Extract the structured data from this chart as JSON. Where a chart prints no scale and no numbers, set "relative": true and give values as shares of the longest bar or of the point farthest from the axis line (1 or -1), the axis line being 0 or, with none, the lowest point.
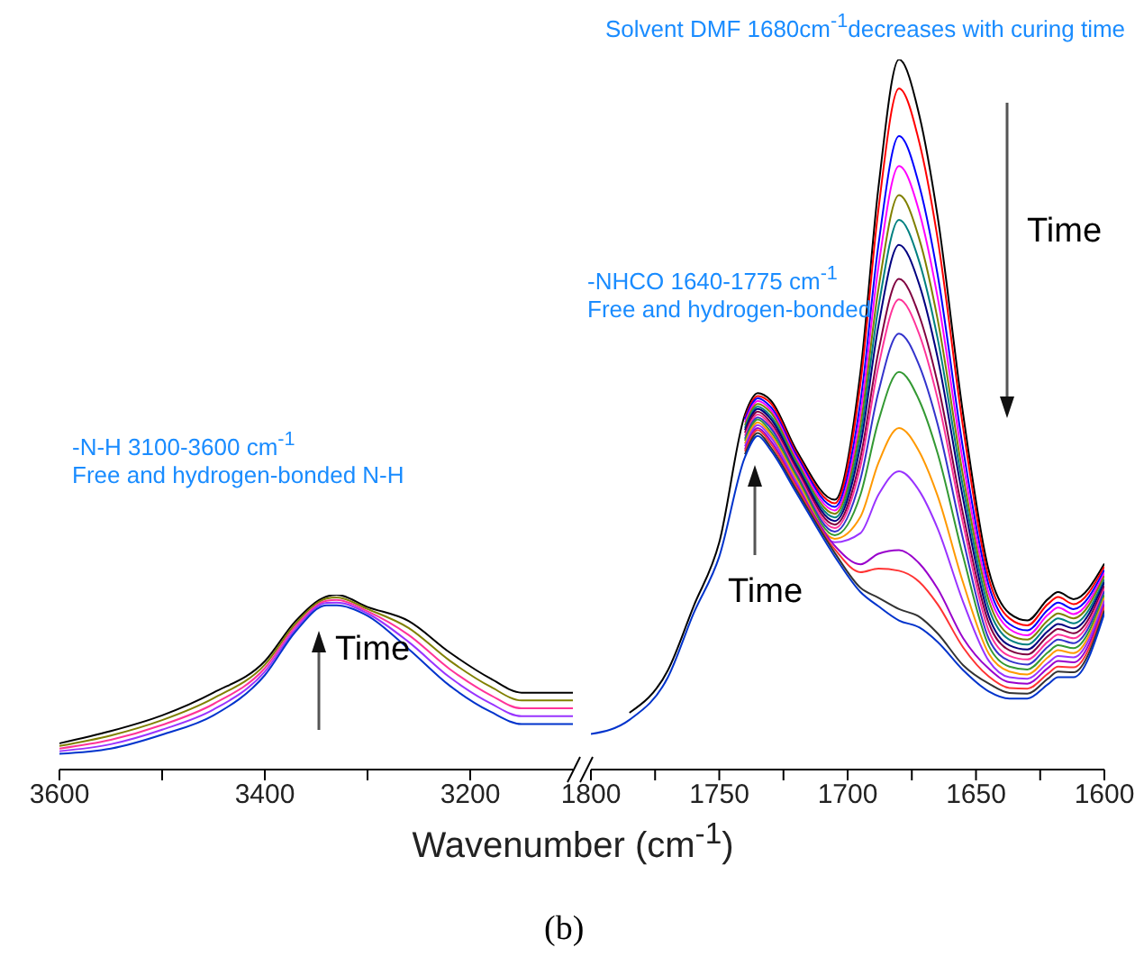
{
  "chart_data": [
    {
      "type": "line",
      "relative": true,
      "xlabel": "Wavenumber (cm$^{-1}$)",
      "xlim": [
        3600,
        3100
      ],
      "xticks": [
        3600,
        {
          "value": 3500,
          "label": null
        },
        3400,
        {
          "value": 3300,
          "label": null
        },
        3200
      ],
      "annotations": [
        "-N-H 3100-3600 cm$^{-1}$",
        "Free and hydrogen-bonded N-H",
        "Time"
      ],
      "x": [
        3600,
        3550,
        3500,
        3450,
        3400,
        3370,
        3340,
        3330,
        3300,
        3260,
        3220,
        3180,
        3150,
        3100
      ],
      "series": [
        {
          "color": "#000000",
          "values": [
            0.15,
            0.22,
            0.31,
            0.44,
            0.62,
            0.85,
            0.99,
            1.0,
            0.93,
            0.85,
            0.67,
            0.52,
            0.44,
            0.44
          ]
        },
        {
          "color": "#ff0000",
          "values": [
            null,
            null,
            null,
            null,
            null,
            null,
            null,
            null,
            null,
            null,
            null,
            null,
            null,
            null
          ]
        },
        {
          "color": "#0000ff",
          "values": [
            null,
            null,
            null,
            null,
            null,
            null,
            null,
            null,
            null,
            null,
            null,
            null,
            null,
            null
          ]
        },
        {
          "color": "#ff00ff",
          "values": [
            null,
            null,
            null,
            null,
            null,
            null,
            null,
            null,
            null,
            null,
            null,
            null,
            null,
            null
          ]
        },
        {
          "color": "#808000",
          "values": [
            0.135,
            0.195,
            0.283,
            0.408,
            0.6,
            0.835,
            0.978,
            0.985,
            0.918,
            0.81,
            0.623,
            0.473,
            0.395,
            0.395
          ]
        },
        {
          "color": "#008080",
          "values": [
            null,
            null,
            null,
            null,
            null,
            null,
            null,
            null,
            null,
            null,
            null,
            null,
            null,
            null
          ]
        },
        {
          "color": "#000080",
          "values": [
            null,
            null,
            null,
            null,
            null,
            null,
            null,
            null,
            null,
            null,
            null,
            null,
            null,
            null
          ]
        },
        {
          "color": "#800040",
          "values": [
            null,
            null,
            null,
            null,
            null,
            null,
            null,
            null,
            null,
            null,
            null,
            null,
            null,
            null
          ]
        },
        {
          "color": "#ff3399",
          "values": [
            0.12,
            0.17,
            0.255,
            0.375,
            0.58,
            0.82,
            0.965,
            0.97,
            0.905,
            0.77,
            0.575,
            0.425,
            0.35,
            0.35
          ]
        },
        {
          "color": "#3333cc",
          "values": [
            null,
            null,
            null,
            null,
            null,
            null,
            null,
            null,
            null,
            null,
            null,
            null,
            null,
            null
          ]
        },
        {
          "color": "#339933",
          "values": [
            null,
            null,
            null,
            null,
            null,
            null,
            null,
            null,
            null,
            null,
            null,
            null,
            null,
            null
          ]
        },
        {
          "color": "#ff9900",
          "values": [
            null,
            null,
            null,
            null,
            null,
            null,
            null,
            null,
            null,
            null,
            null,
            null,
            null,
            null
          ]
        },
        {
          "color": "#9933ff",
          "values": [
            0.105,
            0.145,
            0.228,
            0.343,
            0.56,
            0.805,
            0.953,
            0.955,
            0.893,
            0.73,
            0.528,
            0.378,
            0.305,
            0.305
          ]
        },
        {
          "color": "#9900cc",
          "values": [
            null,
            null,
            null,
            null,
            null,
            null,
            null,
            null,
            null,
            null,
            null,
            null,
            null,
            null
          ]
        },
        {
          "color": "#ff3333",
          "values": [
            null,
            null,
            null,
            null,
            null,
            null,
            null,
            null,
            null,
            null,
            null,
            null,
            null,
            null
          ]
        },
        {
          "color": "#333333",
          "values": [
            null,
            null,
            null,
            null,
            null,
            null,
            null,
            null,
            null,
            null,
            null,
            null,
            null,
            null
          ]
        },
        {
          "color": "#0033cc",
          "values": [
            0.09,
            0.12,
            0.2,
            0.31,
            0.54,
            0.79,
            0.94,
            0.94,
            0.88,
            0.69,
            0.48,
            0.33,
            0.26,
            0.26
          ]
        }
      ]
    },
    {
      "type": "line",
      "relative": true,
      "xlim": [
        1800,
        1600
      ],
      "xticks": [
        1800,
        {
          "value": 1775,
          "label": null
        },
        1750,
        {
          "value": 1725,
          "label": null
        },
        1700,
        {
          "value": 1675,
          "label": null
        },
        1650,
        {
          "value": 1625,
          "label": null
        },
        1600
      ],
      "annotations": [
        "-NHCO 1640-1775 cm$^{-1}$",
        "Free and hydrogen-bonded",
        "Time",
        "Solvent DMF 1680cm$^{-1}$decreases with curing time",
        "Time",
        "(b)"
      ],
      "x": [
        1800,
        1785,
        1770,
        1760,
        1750,
        1740,
        1735,
        1730,
        1720,
        1705,
        1695,
        1688,
        1680,
        1672,
        1665,
        1655,
        1645,
        1637,
        1630,
        1622,
        1618,
        1612,
        1600
      ],
      "series": [
        {
          "color": "#000000",
          "values": [
            null,
            0.08,
            0.14,
            0.23,
            0.32,
            0.5,
            0.53,
            0.52,
            0.45,
            0.38,
            0.56,
            0.82,
            1.0,
            0.92,
            0.78,
            0.5,
            0.28,
            0.22,
            0.21,
            0.24,
            0.25,
            0.24,
            0.29
          ]
        },
        {
          "color": "#ff0000",
          "values": [
            null,
            null,
            null,
            null,
            null,
            0.496,
            0.526,
            0.516,
            0.446,
            0.375,
            0.544,
            0.789,
            0.959,
            0.882,
            0.749,
            0.481,
            0.269,
            0.213,
            0.203,
            0.233,
            0.243,
            0.233,
            0.286
          ]
        },
        {
          "color": "#0000ff",
          "values": [
            null,
            null,
            null,
            null,
            null,
            0.493,
            0.523,
            0.511,
            0.443,
            0.37,
            0.518,
            0.739,
            0.892,
            0.821,
            0.698,
            0.451,
            0.259,
            0.205,
            0.196,
            0.225,
            0.235,
            0.226,
            0.281
          ]
        },
        {
          "color": "#ff00ff",
          "values": [
            null,
            null,
            null,
            null,
            null,
            0.489,
            0.519,
            0.507,
            0.439,
            0.365,
            0.501,
            0.708,
            0.85,
            0.784,
            0.666,
            0.432,
            0.248,
            0.198,
            0.189,
            0.218,
            0.228,
            0.219,
            0.277
          ]
        },
        {
          "color": "#808000",
          "values": [
            null,
            null,
            null,
            null,
            null,
            0.485,
            0.515,
            0.503,
            0.435,
            0.36,
            0.485,
            0.677,
            0.809,
            0.746,
            0.635,
            0.413,
            0.238,
            0.19,
            0.183,
            0.21,
            0.22,
            0.213,
            0.273
          ]
        },
        {
          "color": "#008080",
          "values": [
            null,
            null,
            null,
            null,
            null,
            0.481,
            0.511,
            0.498,
            0.431,
            0.355,
            0.471,
            0.651,
            0.774,
            0.714,
            0.608,
            0.397,
            0.227,
            0.183,
            0.176,
            0.203,
            0.213,
            0.206,
            0.268
          ]
        },
        {
          "color": "#000080",
          "values": [
            null,
            null,
            null,
            null,
            null,
            0.478,
            0.508,
            0.494,
            0.428,
            0.35,
            0.457,
            0.625,
            0.739,
            0.682,
            0.581,
            0.381,
            0.216,
            0.175,
            0.169,
            0.195,
            0.205,
            0.199,
            0.264
          ]
        },
        {
          "color": "#800040",
          "values": [
            null,
            null,
            null,
            null,
            null,
            0.474,
            0.504,
            0.489,
            0.424,
            0.345,
            0.439,
            0.589,
            0.691,
            0.638,
            0.545,
            0.359,
            0.206,
            0.168,
            0.162,
            0.188,
            0.198,
            0.192,
            0.259
          ]
        },
        {
          "color": "#ff3399",
          "values": [
            null,
            null,
            null,
            null,
            null,
            0.47,
            0.5,
            0.485,
            0.42,
            0.34,
            0.427,
            0.568,
            0.662,
            0.612,
            0.523,
            0.346,
            0.195,
            0.16,
            0.155,
            0.18,
            0.19,
            0.185,
            0.255
          ]
        },
        {
          "color": "#3333cc",
          "values": [
            null,
            null,
            null,
            null,
            null,
            0.466,
            0.496,
            0.481,
            0.416,
            0.335,
            0.409,
            0.532,
            0.614,
            0.568,
            0.487,
            0.324,
            0.184,
            0.153,
            0.148,
            0.173,
            0.183,
            0.178,
            0.251
          ]
        },
        {
          "color": "#339933",
          "values": [
            null,
            null,
            null,
            null,
            null,
            0.463,
            0.493,
            0.476,
            0.413,
            0.33,
            0.387,
            0.491,
            0.56,
            0.519,
            0.446,
            0.3,
            0.174,
            0.145,
            0.141,
            0.165,
            0.175,
            0.171,
            0.246
          ]
        },
        {
          "color": "#ff9900",
          "values": [
            null,
            null,
            null,
            null,
            null,
            0.459,
            0.489,
            0.472,
            0.409,
            0.325,
            0.356,
            0.432,
            0.481,
            0.447,
            0.386,
            0.263,
            0.163,
            0.138,
            0.134,
            0.158,
            0.168,
            0.164,
            0.242
          ]
        },
        {
          "color": "#9933ff",
          "values": [
            null,
            null,
            null,
            null,
            null,
            0.455,
            0.485,
            0.468,
            0.405,
            0.32,
            0.333,
            0.387,
            0.42,
            0.392,
            0.34,
            0.236,
            0.153,
            0.13,
            0.128,
            0.15,
            0.16,
            0.158,
            0.238
          ]
        },
        {
          "color": "#9900cc",
          "values": [
            null,
            null,
            null,
            null,
            null,
            0.451,
            0.481,
            0.463,
            0.401,
            0.315,
            0.289,
            0.304,
            0.309,
            0.29,
            0.255,
            0.185,
            0.142,
            0.123,
            0.121,
            0.143,
            0.153,
            0.151,
            0.233
          ]
        },
        {
          "color": "#ff3333",
          "values": [
            null,
            null,
            null,
            null,
            null,
            0.448,
            0.478,
            0.459,
            0.398,
            0.31,
            0.278,
            0.283,
            0.28,
            0.264,
            0.233,
            0.172,
            0.131,
            0.115,
            0.114,
            0.135,
            0.145,
            0.144,
            0.229
          ]
        },
        {
          "color": "#333333",
          "values": [
            null,
            null,
            null,
            null,
            null,
            0.444,
            0.474,
            0.454,
            0.394,
            0.305,
            0.256,
            0.242,
            0.226,
            0.215,
            0.192,
            0.147,
            0.121,
            0.108,
            0.107,
            0.128,
            0.138,
            0.137,
            0.224
          ]
        },
        {
          "color": "#0033cc",
          "values": [
            0.05,
            0.07,
            0.13,
            0.22,
            0.3,
            0.44,
            0.47,
            0.45,
            0.39,
            0.3,
            0.25,
            0.23,
            0.21,
            0.2,
            0.18,
            0.14,
            0.11,
            0.1,
            0.1,
            0.12,
            0.13,
            0.13,
            0.22
          ]
        }
      ]
    }
  ]
}
